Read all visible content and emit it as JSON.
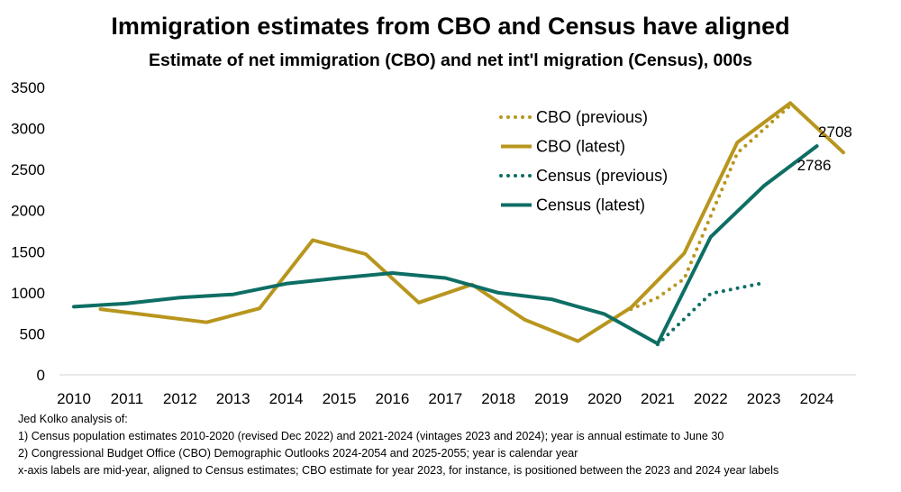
{
  "chart_data": {
    "type": "line",
    "title": "Immigration estimates from CBO and Census have aligned",
    "subtitle": "Estimate of net immigration (CBO) and net int'l migration (Census), 000s",
    "xlabel": "",
    "ylabel": "",
    "ylim": [
      0,
      3500
    ],
    "xlim": [
      2010,
      2024.5
    ],
    "yticks": [
      0,
      500,
      1000,
      1500,
      2000,
      2500,
      3000,
      3500
    ],
    "xticks": [
      "2010",
      "2011",
      "2012",
      "2013",
      "2014",
      "2015",
      "2016",
      "2017",
      "2018",
      "2019",
      "2020",
      "2021",
      "2022",
      "2023",
      "2024"
    ],
    "grid": false,
    "legend_position": "top-right",
    "series": [
      {
        "name": "CBO (previous)",
        "color": "#B8961E",
        "style": "dotted",
        "x": [
          2020.5,
          2021,
          2021.5,
          2022.5,
          2023.5
        ],
        "y": [
          800,
          940,
          1170,
          2700,
          3280
        ]
      },
      {
        "name": "CBO (latest)",
        "color": "#B8961E",
        "style": "solid",
        "x": [
          2010.5,
          2011.5,
          2012.5,
          2013.5,
          2014.5,
          2015.5,
          2016.5,
          2017.5,
          2018.5,
          2019.5,
          2020.5,
          2021.5,
          2022.5,
          2023.5,
          2024.5
        ],
        "y": [
          800,
          720,
          640,
          810,
          1640,
          1470,
          880,
          1100,
          670,
          410,
          820,
          1480,
          2830,
          3310,
          2708
        ]
      },
      {
        "name": "Census (previous)",
        "color": "#0E6E64",
        "style": "dotted",
        "x": [
          2021,
          2022,
          2023
        ],
        "y": [
          370,
          990,
          1120
        ]
      },
      {
        "name": "Census (latest)",
        "color": "#0E6E64",
        "style": "solid",
        "x": [
          2010,
          2011,
          2012,
          2013,
          2014,
          2015,
          2016,
          2017,
          2018,
          2019,
          2020,
          2021,
          2022,
          2023,
          2024
        ],
        "y": [
          830,
          870,
          940,
          980,
          1110,
          1180,
          1240,
          1180,
          1000,
          920,
          740,
          380,
          1680,
          2300,
          2786
        ]
      }
    ],
    "annotations": [
      {
        "text": "2708",
        "series": "CBO (latest)",
        "x": 2024.5,
        "y": 2708
      },
      {
        "text": "2786",
        "series": "Census (latest)",
        "x": 2024,
        "y": 2786
      }
    ]
  },
  "notes": {
    "line1": "Jed Kolko analysis of:",
    "line2": "1) Census population estimates 2010-2020 (revised Dec 2022) and 2021-2024 (vintages 2023 and 2024); year is annual estimate to June 30",
    "line3": "2) Congressional Budget Office (CBO) Demographic Outlooks 2024-2054 and 2025-2055; year is calendar year",
    "line4": "x-axis labels are mid-year, aligned to Census estimates; CBO estimate for year 2023, for instance, is positioned between the 2023 and 2024 year labels"
  }
}
